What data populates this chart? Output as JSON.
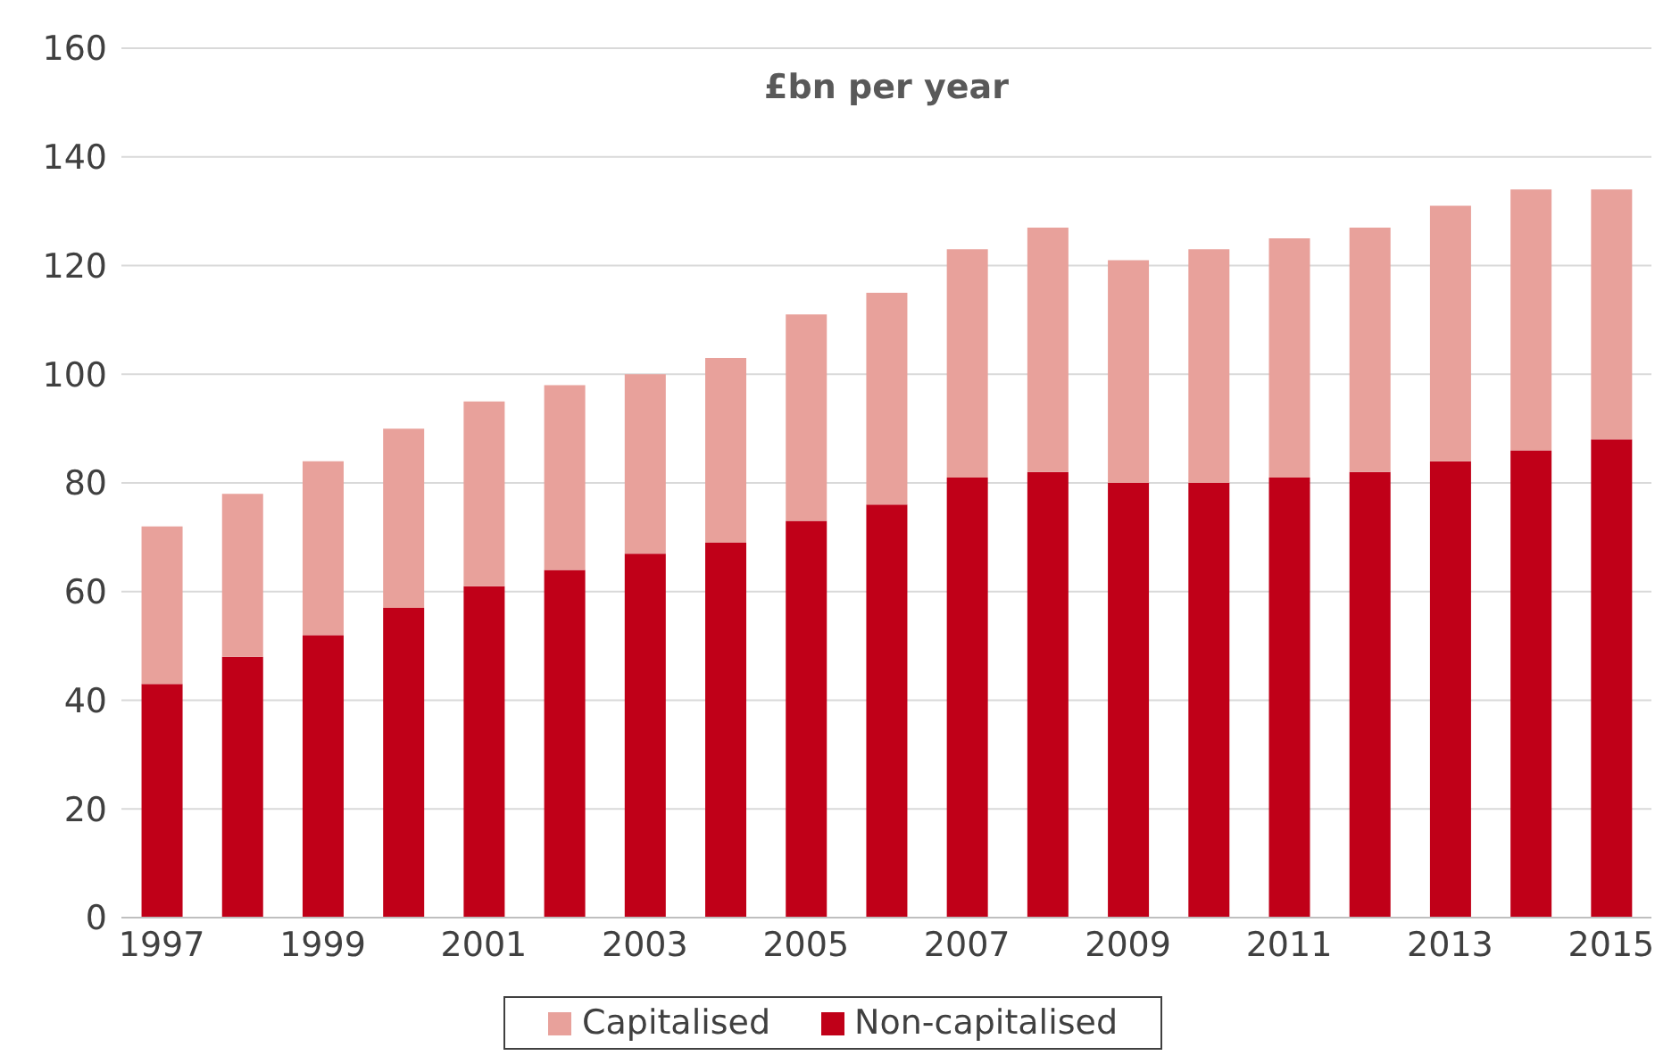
{
  "chart_data": {
    "type": "bar",
    "title": "£bn per year",
    "stacked": true,
    "categories": [
      "1997",
      null,
      "1999",
      null,
      "2001",
      null,
      "2003",
      null,
      "2005",
      null,
      "2007",
      null,
      "2009",
      null,
      "2011",
      null,
      "2013",
      null,
      "2015"
    ],
    "series": [
      {
        "name": "Non-capitalised",
        "color": "#c00018",
        "values": [
          43,
          48,
          52,
          57,
          61,
          64,
          67,
          69,
          73,
          76,
          81,
          82,
          80,
          80,
          81,
          82,
          84,
          86,
          88
        ]
      },
      {
        "name": "Capitalised",
        "color": "#e8a19b",
        "values": [
          29,
          30,
          32,
          33,
          34,
          34,
          33,
          34,
          38,
          39,
          42,
          45,
          41,
          43,
          44,
          45,
          47,
          48,
          46
        ]
      }
    ],
    "ylim": [
      0,
      160
    ],
    "yticks": [
      0,
      20,
      40,
      60,
      80,
      100,
      120,
      140,
      160
    ],
    "grid": "y",
    "legend": "bottom"
  }
}
